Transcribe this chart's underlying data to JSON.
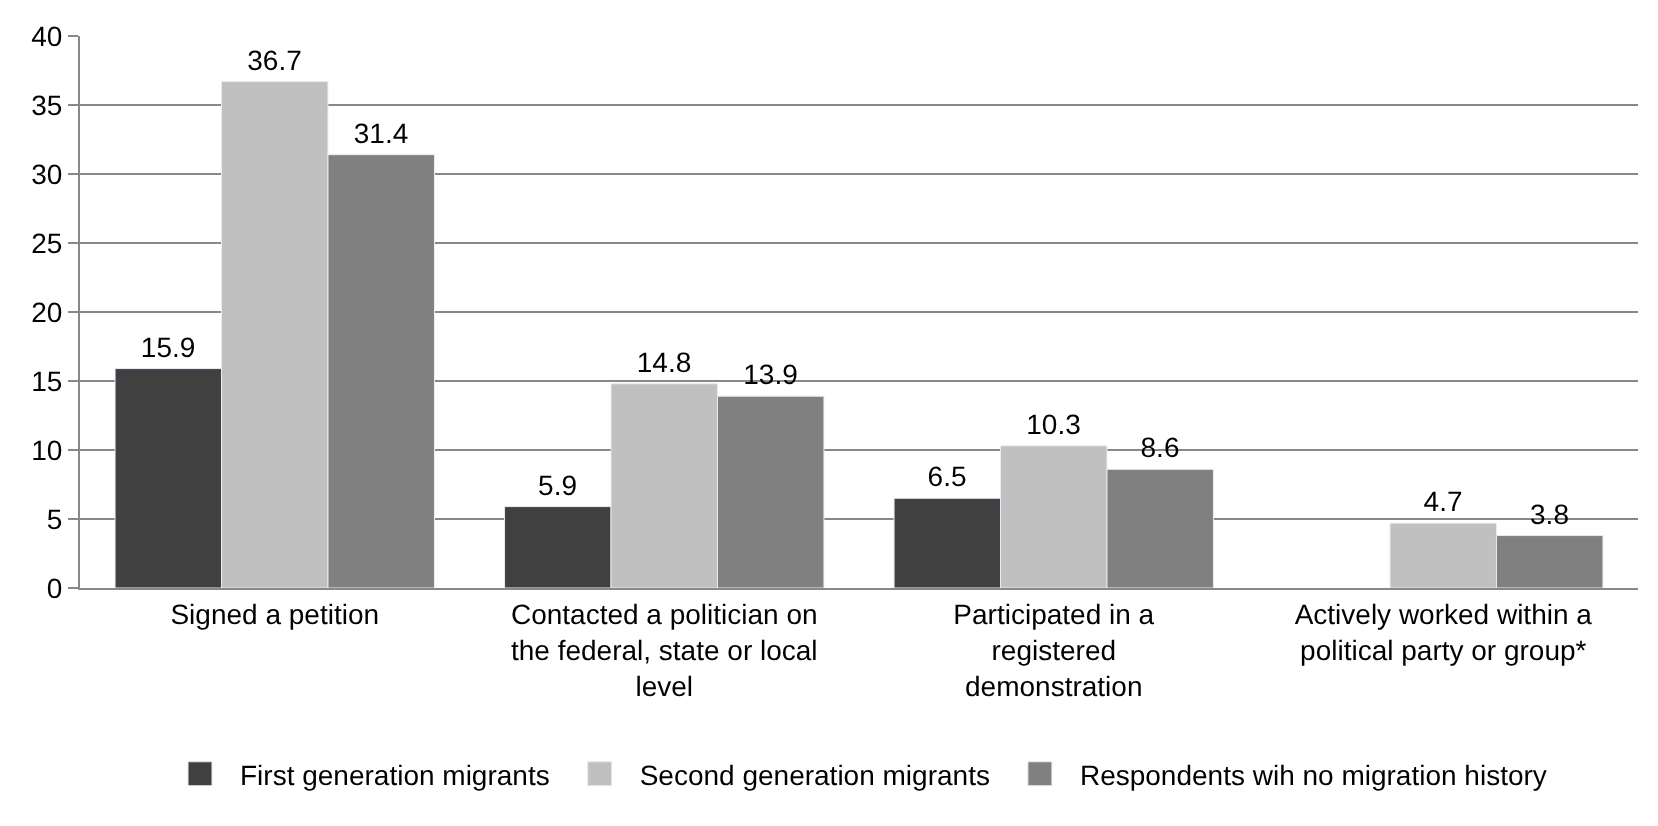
{
  "chart_data": {
    "type": "bar",
    "categories": [
      "Signed a petition",
      "Contacted a politician on\nthe federal, state or local\nlevel",
      "Participated in a\nregistered\ndemonstration",
      "Actively worked within a\npolitical party or group*"
    ],
    "series": [
      {
        "name": "First generation migrants",
        "color": "#404040",
        "values": [
          15.9,
          5.9,
          6.5,
          null
        ]
      },
      {
        "name": "Second generation migrants",
        "color": "#c0c0c0",
        "values": [
          36.7,
          14.8,
          10.3,
          4.7
        ]
      },
      {
        "name": "Respondents wih no migration history",
        "color": "#808080",
        "values": [
          31.4,
          13.9,
          8.6,
          3.8
        ]
      }
    ],
    "ylim": [
      0,
      40
    ],
    "yticks": [
      0,
      5,
      10,
      15,
      20,
      25,
      30,
      35,
      40
    ],
    "grid": "y",
    "legend": "bottom",
    "data_labels": true
  }
}
